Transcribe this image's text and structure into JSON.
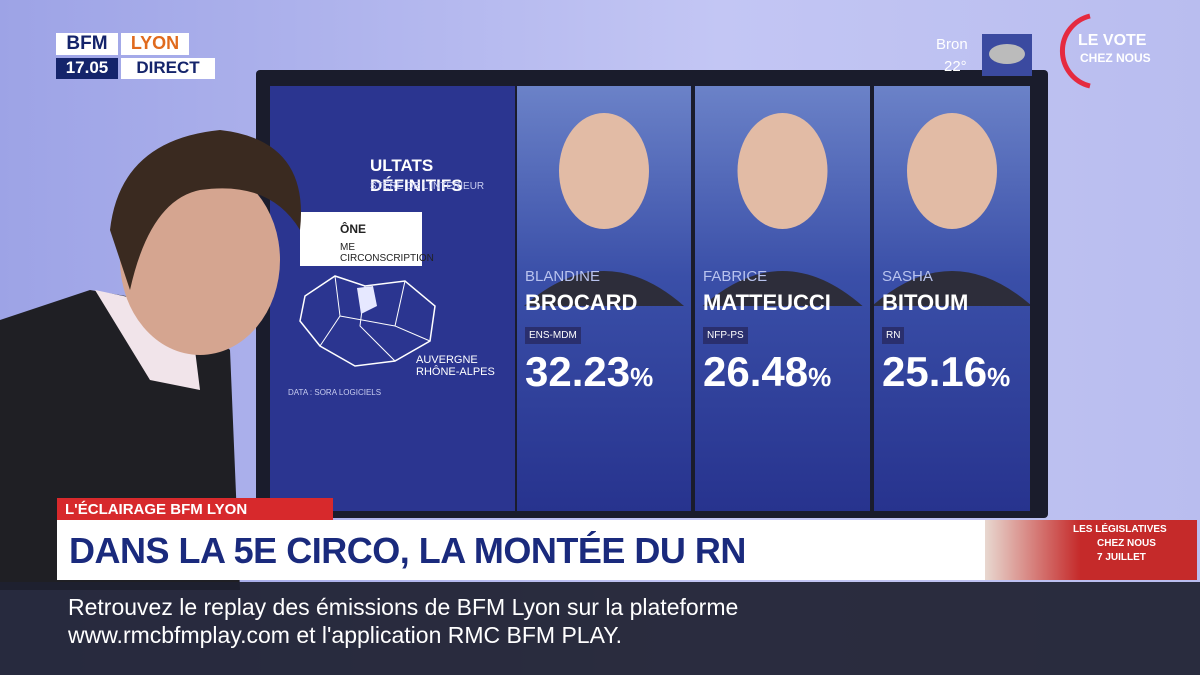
{
  "channel": {
    "brand": "BFM",
    "city": "LYON",
    "time": "17.05",
    "live": "DIRECT"
  },
  "weather": {
    "place": "Bron",
    "temperature": "22°"
  },
  "vote_logo": {
    "line1": "LE VOTE",
    "line2": "CHEZ NOUS"
  },
  "screen": {
    "title": "ULTATS DÉFINITIFS",
    "source": "STÈRE DE L'INTÉRIEUR",
    "department": "ÔNE",
    "district": "ME CIRCONSCRIPTION",
    "region": "AUVERGNE RHÔNE-ALPES",
    "data_credit": "DATA : SORA LOGICIELS",
    "candidates": [
      {
        "first_name": "BLANDINE",
        "last_name": "BROCARD",
        "party": "ENS-MDM",
        "score": "32.23",
        "unit": "%"
      },
      {
        "first_name": "FABRICE",
        "last_name": "MATTEUCCI",
        "party": "NFP-PS",
        "score": "26.48",
        "unit": "%"
      },
      {
        "first_name": "SASHA",
        "last_name": "BITOUM",
        "party": "RN",
        "score": "25.16",
        "unit": "%"
      }
    ]
  },
  "banner": {
    "tag": "L'ÉCLAIRAGE BFM LYON",
    "headline": "DANS LA 5E CIRCO, LA MONTÉE DU RN"
  },
  "promo": {
    "line1": "LES LÉGISLATIVES",
    "line2": "CHEZ NOUS",
    "line3": "7 JUILLET"
  },
  "ticker": {
    "line1": "Retrouvez le replay des émissions de BFM Lyon sur la plateforme",
    "line2": "www.rmcbfmplay.com et l'application RMC BFM PLAY."
  }
}
